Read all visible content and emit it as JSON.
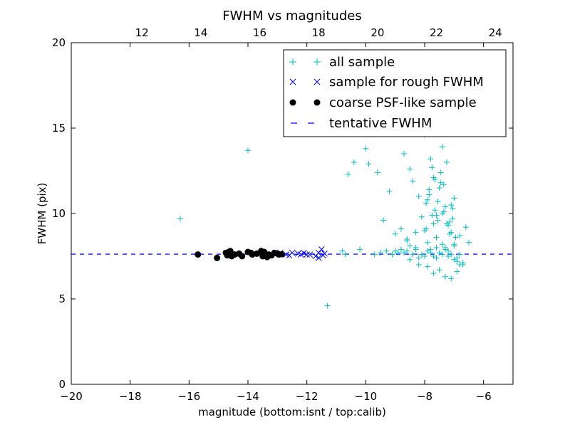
{
  "chart_data": {
    "type": "scatter",
    "title": "FWHM vs magnitudes",
    "xlabel": "magnitude (bottom:isnt / top:calib)",
    "ylabel": "FWHM (pix)",
    "xlim": [
      -20,
      -5
    ],
    "ylim": [
      0,
      20
    ],
    "x_ticks": [
      "−20",
      "−18",
      "−16",
      "−14",
      "−12",
      "−10",
      "−8",
      "−6"
    ],
    "x_tick_values": [
      -20,
      -18,
      -16,
      -14,
      -12,
      -10,
      -8,
      -6
    ],
    "y_ticks": [
      "0",
      "5",
      "10",
      "15",
      "20"
    ],
    "y_tick_values": [
      0,
      5,
      10,
      15,
      20
    ],
    "top_x_ticks": [
      "12",
      "14",
      "16",
      "18",
      "20",
      "22",
      "24"
    ],
    "top_x_offset": 29.6,
    "grid": false,
    "legend_placement": "top-right",
    "series": [
      {
        "name": "all sample",
        "marker": "plus",
        "color": "#00bfbf",
        "x": [
          -16.3,
          -14.0,
          -11.3,
          -10.6,
          -10.4,
          -10.7,
          -10.0,
          -9.9,
          -9.6,
          -9.2,
          -9.4,
          -8.8,
          -8.7,
          -8.5,
          -8.4,
          -8.2,
          -8.0,
          -7.9,
          -7.8,
          -7.7,
          -7.6,
          -7.5,
          -7.4,
          -7.3,
          -7.2,
          -7.1,
          -7.0,
          -6.8,
          -6.6,
          -6.5,
          -8.6,
          -8.3,
          -8.1,
          -7.95,
          -7.85,
          -7.75,
          -7.65,
          -7.55,
          -7.45,
          -7.35,
          -7.25,
          -7.15,
          -7.05,
          -6.95,
          -6.9,
          -6.7,
          -8.5,
          -8.2,
          -7.9,
          -7.7,
          -7.5,
          -7.3,
          -7.1,
          -6.9,
          -7.8,
          -7.6,
          -7.4,
          -7.2,
          -7.0,
          -8.9,
          -8.6,
          -8.4,
          -8.0,
          -7.8,
          -7.6,
          -7.4,
          -7.2,
          -7.0,
          -6.8,
          -9.0,
          -8.7,
          -8.3,
          -8.1,
          -7.9,
          -7.7,
          -7.5,
          -7.3,
          -7.1,
          -6.9,
          -9.5,
          -9.3,
          -9.1,
          -8.8,
          -8.5,
          -8.2,
          -7.9,
          -7.6,
          -7.3,
          -7.0,
          -6.7,
          -10.8,
          -10.2,
          -9.7,
          -9.0,
          -8.6,
          -8.3,
          -8.0,
          -7.7,
          -7.4,
          -7.1,
          -6.8,
          -7.85,
          -7.65,
          -7.45,
          -7.25,
          -7.05,
          -7.95,
          -7.75,
          -7.55,
          -7.35,
          -7.15
        ],
        "y": [
          9.7,
          13.7,
          4.6,
          12.3,
          13.0,
          7.6,
          13.8,
          12.9,
          12.4,
          11.3,
          9.6,
          9.1,
          13.5,
          12.6,
          11.9,
          11.0,
          14.6,
          10.8,
          13.2,
          12.1,
          9.9,
          11.5,
          13.9,
          10.4,
          9.3,
          8.9,
          10.9,
          8.7,
          9.2,
          8.3,
          8.5,
          8.9,
          9.8,
          10.6,
          11.4,
          12.7,
          10.2,
          9.6,
          11.8,
          10.1,
          9.4,
          8.8,
          9.7,
          8.6,
          7.2,
          7.0,
          7.3,
          7.0,
          6.9,
          6.5,
          6.7,
          6.3,
          6.2,
          6.6,
          7.9,
          8.0,
          8.2,
          7.8,
          8.1,
          7.7,
          7.8,
          7.6,
          7.5,
          7.7,
          7.4,
          7.6,
          7.5,
          7.3,
          7.6,
          7.8,
          7.7,
          7.9,
          7.6,
          7.8,
          7.5,
          7.7,
          7.9,
          7.6,
          7.4,
          7.7,
          7.8,
          7.6,
          7.9,
          8.1,
          7.4,
          8.3,
          8.6,
          8.0,
          8.2,
          7.1,
          7.8,
          7.9,
          7.6,
          8.8,
          8.4,
          8.0,
          9.0,
          9.4,
          10.0,
          10.5,
          7.0,
          11.1,
          12.0,
          12.4,
          13.0,
          10.3,
          9.1,
          9.9,
          10.7,
          11.7,
          9.5
        ]
      },
      {
        "name": "sample for rough FWHM",
        "marker": "x",
        "color": "#0000ff",
        "x": [
          -12.9,
          -12.7,
          -12.5,
          -12.3,
          -12.2,
          -12.1,
          -11.9,
          -11.7,
          -11.6,
          -11.5,
          -11.45,
          -11.6,
          -11.4,
          -12.6,
          -12.0
        ],
        "y": [
          7.7,
          7.6,
          7.7,
          7.65,
          7.6,
          7.7,
          7.6,
          7.5,
          7.7,
          7.9,
          7.55,
          7.4,
          7.65,
          7.55,
          7.6
        ]
      },
      {
        "name": "coarse PSF-like sample",
        "marker": "circle",
        "color": "#000000",
        "x": [
          -15.7,
          -15.05,
          -14.75,
          -14.65,
          -14.6,
          -14.55,
          -14.45,
          -14.3,
          -14.2,
          -14.0,
          -13.85,
          -13.7,
          -13.55,
          -13.45,
          -13.35,
          -13.3,
          -13.2,
          -13.1,
          -13.0,
          -12.95,
          -12.85,
          -14.7,
          -13.9,
          -13.5
        ],
        "y": [
          7.6,
          7.4,
          7.7,
          7.75,
          7.8,
          7.5,
          7.6,
          7.65,
          7.5,
          7.75,
          7.6,
          7.65,
          7.8,
          7.75,
          7.45,
          7.6,
          7.55,
          7.7,
          7.65,
          7.6,
          7.62,
          7.55,
          7.7,
          7.5
        ]
      },
      {
        "name": "tentative FWHM",
        "marker": "dashed-line",
        "color": "#0000ff",
        "y_value": 7.62
      }
    ]
  }
}
